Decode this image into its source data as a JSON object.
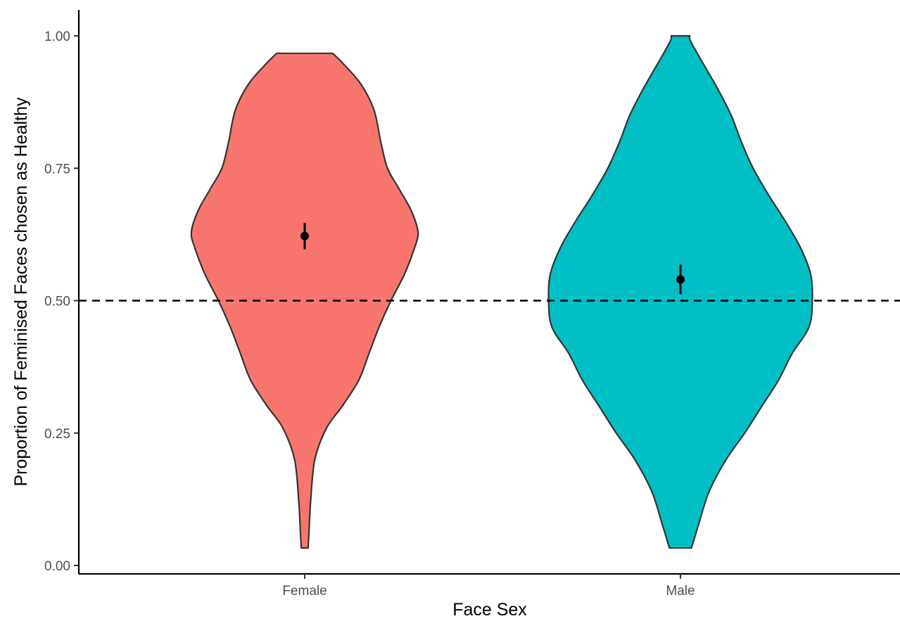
{
  "chart_data": {
    "type": "violin",
    "xlabel": "Face Sex",
    "ylabel": "Proportion of Feminised Faces chosen as Healthy",
    "categories": [
      "Female",
      "Male"
    ],
    "ylim": [
      0,
      1
    ],
    "yticks": [
      {
        "value": 0.0,
        "label": "0.00"
      },
      {
        "value": 0.25,
        "label": "0.25"
      },
      {
        "value": 0.5,
        "label": "0.50"
      },
      {
        "value": 0.75,
        "label": "0.75"
      },
      {
        "value": 1.0,
        "label": "1.00"
      }
    ],
    "reference_line": {
      "y": 0.5,
      "style": "dashed",
      "color": "#000000"
    },
    "series": [
      {
        "category": "Female",
        "color": "#F8766D",
        "min": 0.033,
        "max": 0.967,
        "mean": 0.622,
        "ci": [
          0.597,
          0.647
        ],
        "density_profile": [
          {
            "y": 0.033,
            "half_width": 0.02
          },
          {
            "y": 0.06,
            "half_width": 0.025
          },
          {
            "y": 0.12,
            "half_width": 0.035
          },
          {
            "y": 0.2,
            "half_width": 0.06
          },
          {
            "y": 0.26,
            "half_width": 0.13
          },
          {
            "y": 0.3,
            "half_width": 0.22
          },
          {
            "y": 0.35,
            "half_width": 0.32
          },
          {
            "y": 0.4,
            "half_width": 0.38
          },
          {
            "y": 0.45,
            "half_width": 0.44
          },
          {
            "y": 0.5,
            "half_width": 0.51
          },
          {
            "y": 0.55,
            "half_width": 0.59
          },
          {
            "y": 0.6,
            "half_width": 0.65
          },
          {
            "y": 0.63,
            "half_width": 0.67
          },
          {
            "y": 0.67,
            "half_width": 0.63
          },
          {
            "y": 0.71,
            "half_width": 0.56
          },
          {
            "y": 0.75,
            "half_width": 0.49
          },
          {
            "y": 0.8,
            "half_width": 0.45
          },
          {
            "y": 0.86,
            "half_width": 0.41
          },
          {
            "y": 0.91,
            "half_width": 0.33
          },
          {
            "y": 0.95,
            "half_width": 0.22
          },
          {
            "y": 0.967,
            "half_width": 0.165
          }
        ]
      },
      {
        "category": "Male",
        "color": "#00BFC4",
        "min": 0.033,
        "max": 1.0,
        "mean": 0.54,
        "ci": [
          0.512,
          0.568
        ],
        "density_profile": [
          {
            "y": 0.033,
            "half_width": 0.065
          },
          {
            "y": 0.08,
            "half_width": 0.11
          },
          {
            "y": 0.14,
            "half_width": 0.17
          },
          {
            "y": 0.2,
            "half_width": 0.27
          },
          {
            "y": 0.25,
            "half_width": 0.38
          },
          {
            "y": 0.3,
            "half_width": 0.48
          },
          {
            "y": 0.35,
            "half_width": 0.58
          },
          {
            "y": 0.4,
            "half_width": 0.66
          },
          {
            "y": 0.45,
            "half_width": 0.76
          },
          {
            "y": 0.5,
            "half_width": 0.78
          },
          {
            "y": 0.55,
            "half_width": 0.77
          },
          {
            "y": 0.6,
            "half_width": 0.71
          },
          {
            "y": 0.65,
            "half_width": 0.62
          },
          {
            "y": 0.7,
            "half_width": 0.52
          },
          {
            "y": 0.75,
            "half_width": 0.43
          },
          {
            "y": 0.8,
            "half_width": 0.36
          },
          {
            "y": 0.85,
            "half_width": 0.3
          },
          {
            "y": 0.9,
            "half_width": 0.22
          },
          {
            "y": 0.95,
            "half_width": 0.13
          },
          {
            "y": 0.99,
            "half_width": 0.06
          },
          {
            "y": 1.0,
            "half_width": 0.055
          }
        ]
      }
    ],
    "grid": false,
    "legend": "none"
  }
}
